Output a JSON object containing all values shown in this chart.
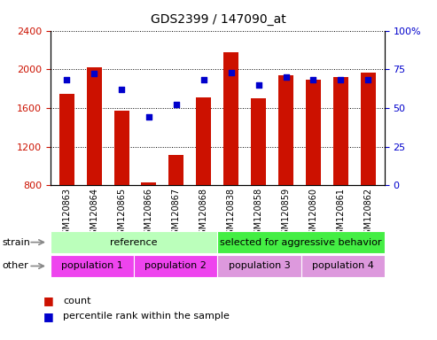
{
  "title": "GDS2399 / 147090_at",
  "samples": [
    "GSM120863",
    "GSM120864",
    "GSM120865",
    "GSM120866",
    "GSM120867",
    "GSM120868",
    "GSM120838",
    "GSM120858",
    "GSM120859",
    "GSM120860",
    "GSM120861",
    "GSM120862"
  ],
  "count_values": [
    1750,
    2020,
    1575,
    830,
    1110,
    1710,
    2180,
    1700,
    1940,
    1890,
    1920,
    1970
  ],
  "percentile_values": [
    68,
    72,
    62,
    44,
    52,
    68,
    73,
    65,
    70,
    68,
    68,
    68
  ],
  "ylim_left": [
    800,
    2400
  ],
  "ylim_right": [
    0,
    100
  ],
  "yticks_left": [
    800,
    1200,
    1600,
    2000,
    2400
  ],
  "yticks_right": [
    0,
    25,
    50,
    75,
    100
  ],
  "bar_color": "#cc1100",
  "dot_color": "#0000cc",
  "bar_width": 0.55,
  "strain_labels": [
    "reference",
    "selected for aggressive behavior"
  ],
  "strain_colors": [
    "#bbffbb",
    "#44ee44"
  ],
  "population_labels": [
    "population 1",
    "population 2",
    "population 3",
    "population 4"
  ],
  "population_colors": [
    "#ee44ee",
    "#ee44ee",
    "#dd99dd",
    "#dd99dd"
  ],
  "background_color": "#ffffff",
  "tick_label_color_left": "#cc1100",
  "tick_label_color_right": "#0000cc"
}
